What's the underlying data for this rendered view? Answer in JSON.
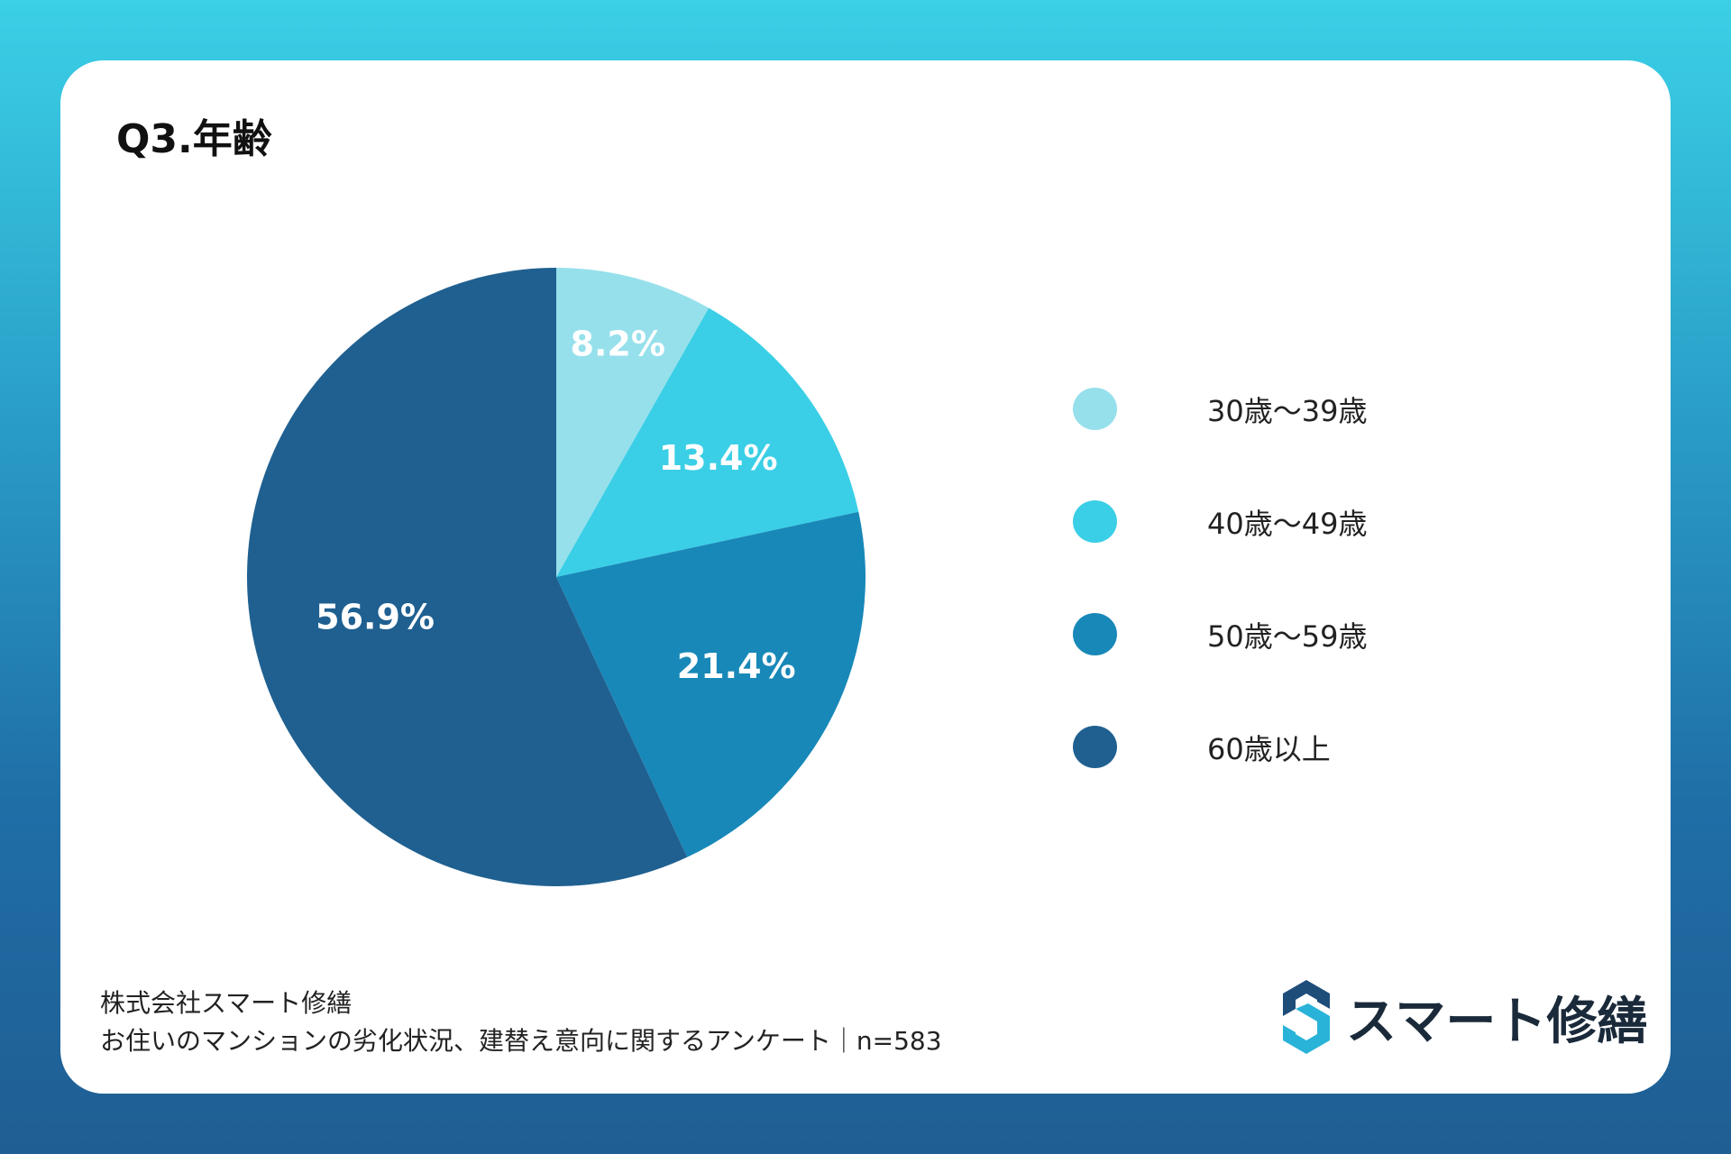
{
  "chart_data": {
    "type": "pie",
    "title": "Q3.年齢",
    "categories": [
      "30歳〜39歳",
      "40歳〜49歳",
      "50歳〜59歳",
      "60歳以上"
    ],
    "values": [
      8.2,
      13.4,
      21.4,
      56.9
    ],
    "labels": [
      "8.2%",
      "13.4%",
      "21.4%",
      "56.9%"
    ],
    "colors": [
      "#96e0ec",
      "#3acfe6",
      "#1888b8",
      "#1f6090"
    ],
    "legend_position": "right",
    "start_angle": "top, clockwise"
  },
  "footer": {
    "company": "株式会社スマート修繕",
    "survey": "お住いのマンションの劣化状況、建替え意向に関するアンケート｜n=583"
  },
  "logo": {
    "text": "スマート修繕",
    "icon": "s-logo-icon"
  }
}
